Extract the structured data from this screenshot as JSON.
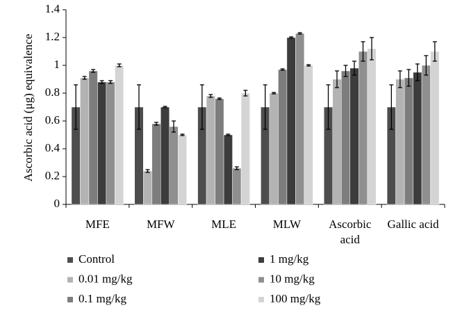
{
  "chart_data": {
    "type": "bar",
    "y_label": "Ascorbic acid (μg) equivalence",
    "categories": [
      "MFE",
      "MFW",
      "MLE",
      "MLW",
      "Ascorbic acid",
      "Gallic acid"
    ],
    "series": [
      {
        "name": "Control",
        "color": "#4d4d4d",
        "values": [
          0.7,
          0.7,
          0.7,
          0.7,
          0.7,
          0.7
        ],
        "errors": [
          0.16,
          0.16,
          0.16,
          0.16,
          0.16,
          0.16
        ]
      },
      {
        "name": "0.01 mg/kg",
        "color": "#b3b3b3",
        "values": [
          0.91,
          0.24,
          0.78,
          0.8,
          0.9,
          0.9
        ],
        "errors": [
          0.01,
          0.01,
          0.01,
          0.005,
          0.06,
          0.06
        ]
      },
      {
        "name": "0.1 mg/kg",
        "color": "#7d7d7d",
        "values": [
          0.96,
          0.58,
          0.76,
          0.97,
          0.96,
          0.91
        ],
        "errors": [
          0.01,
          0.01,
          0.005,
          0.005,
          0.04,
          0.06
        ]
      },
      {
        "name": "1 mg/kg",
        "color": "#3c3c3c",
        "values": [
          0.88,
          0.7,
          0.5,
          1.2,
          0.98,
          0.95
        ],
        "errors": [
          0.01,
          0.005,
          0.005,
          0.005,
          0.05,
          0.06
        ]
      },
      {
        "name": "10 mg/kg",
        "color": "#8f8f8f",
        "values": [
          0.88,
          0.56,
          0.26,
          1.23,
          1.1,
          1.0
        ],
        "errors": [
          0.01,
          0.04,
          0.01,
          0.005,
          0.07,
          0.07
        ]
      },
      {
        "name": "100 mg/kg",
        "color": "#d4d4d4",
        "values": [
          1.0,
          0.5,
          0.8,
          1.0,
          1.12,
          1.1
        ],
        "errors": [
          0.01,
          0.005,
          0.02,
          0.005,
          0.08,
          0.07
        ]
      }
    ],
    "ylim": [
      0,
      1.4
    ],
    "yticks": [
      0,
      0.2,
      0.4,
      0.6,
      0.8,
      1,
      1.2,
      1.4
    ],
    "grid": false
  }
}
